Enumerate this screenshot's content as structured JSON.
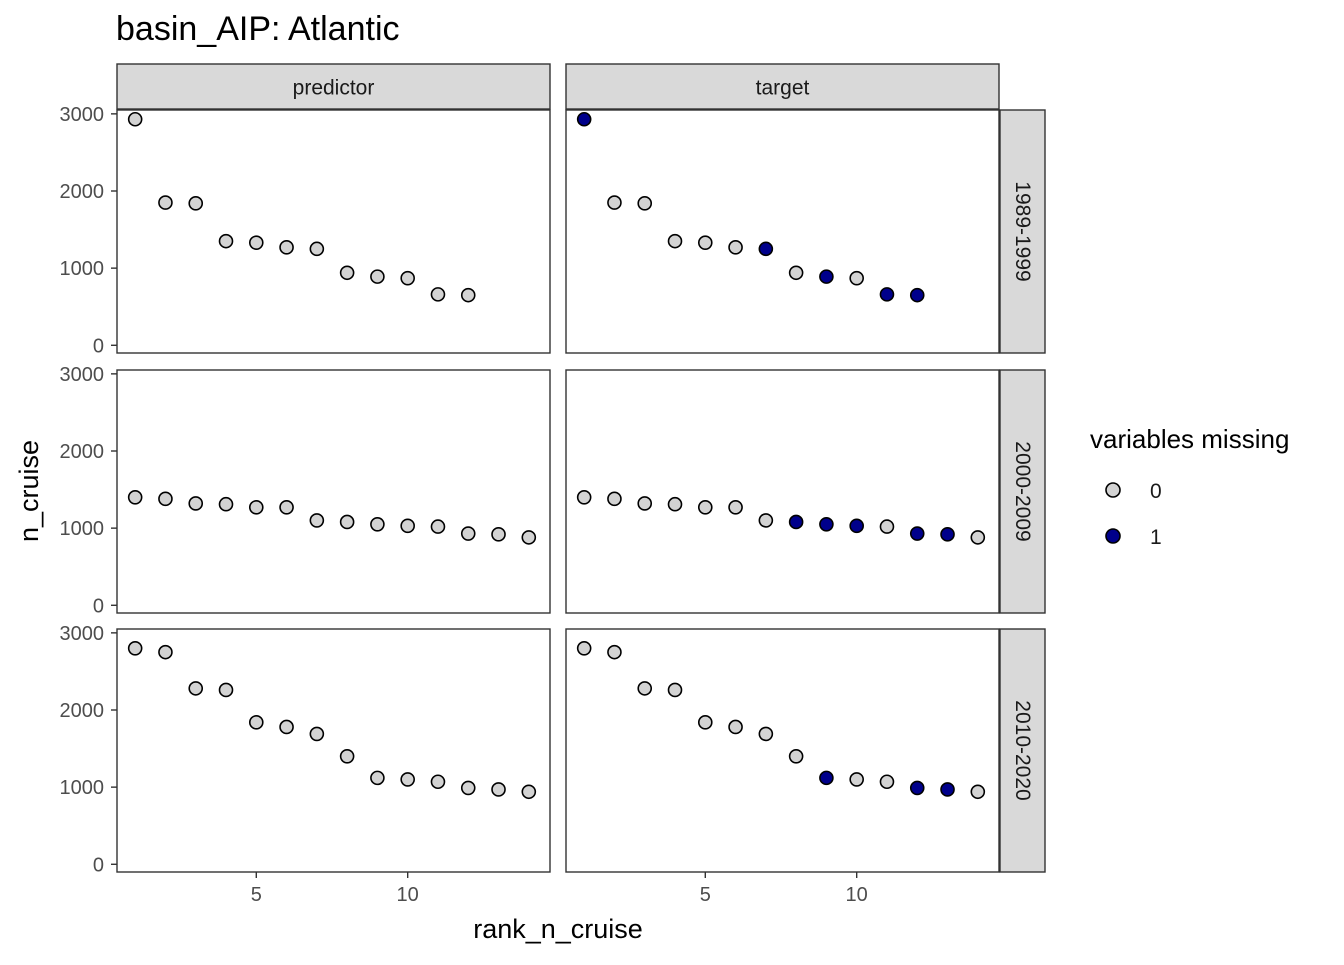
{
  "chart_data": {
    "type": "scatter",
    "title": "basin_AIP: Atlantic",
    "xlabel": "rank_n_cruise",
    "ylabel": "n_cruise",
    "ylim": [
      -100,
      3050
    ],
    "xlim": [
      0.4,
      14.7
    ],
    "x_ticks": [
      5,
      10
    ],
    "y_ticks": [
      0,
      1000,
      2000,
      3000
    ],
    "grid": false,
    "column_facets": [
      "predictor",
      "target"
    ],
    "row_facets": [
      "1989-1999",
      "2000-2009",
      "2010-2020"
    ],
    "legend": {
      "title": "variables missing",
      "position": "right",
      "entries": [
        {
          "label": "0",
          "color": "#d3d3d3"
        },
        {
          "label": "1",
          "color": "#00008b"
        }
      ]
    },
    "colors": {
      "missing_0": "#d3d3d3",
      "missing_1": "#00008b",
      "strip_bg": "#d9d9d9"
    },
    "panels": [
      {
        "column": "predictor",
        "row": "1989-1999",
        "x": [
          1,
          2,
          3,
          4,
          5,
          6,
          7,
          8,
          9,
          10,
          11,
          12
        ],
        "y": [
          2930,
          1850,
          1840,
          1350,
          1330,
          1270,
          1250,
          940,
          890,
          870,
          660,
          650
        ],
        "missing": [
          0,
          0,
          0,
          0,
          0,
          0,
          0,
          0,
          0,
          0,
          0,
          0
        ]
      },
      {
        "column": "target",
        "row": "1989-1999",
        "x": [
          1,
          2,
          3,
          4,
          5,
          6,
          7,
          8,
          9,
          10,
          11,
          12
        ],
        "y": [
          2930,
          1850,
          1840,
          1350,
          1330,
          1270,
          1250,
          940,
          890,
          870,
          660,
          650
        ],
        "missing": [
          1,
          0,
          0,
          0,
          0,
          0,
          1,
          0,
          1,
          0,
          1,
          1
        ]
      },
      {
        "column": "predictor",
        "row": "2000-2009",
        "x": [
          1,
          2,
          3,
          4,
          5,
          6,
          7,
          8,
          9,
          10,
          11,
          12,
          13,
          14
        ],
        "y": [
          1400,
          1380,
          1320,
          1310,
          1270,
          1270,
          1100,
          1080,
          1050,
          1030,
          1020,
          930,
          920,
          880
        ],
        "missing": [
          0,
          0,
          0,
          0,
          0,
          0,
          0,
          0,
          0,
          0,
          0,
          0,
          0,
          0
        ]
      },
      {
        "column": "target",
        "row": "2000-2009",
        "x": [
          1,
          2,
          3,
          4,
          5,
          6,
          7,
          8,
          9,
          10,
          11,
          12,
          13,
          14
        ],
        "y": [
          1400,
          1380,
          1320,
          1310,
          1270,
          1270,
          1100,
          1080,
          1050,
          1030,
          1020,
          930,
          920,
          880
        ],
        "missing": [
          0,
          0,
          0,
          0,
          0,
          0,
          0,
          1,
          1,
          1,
          0,
          1,
          1,
          0
        ]
      },
      {
        "column": "predictor",
        "row": "2010-2020",
        "x": [
          1,
          2,
          3,
          4,
          5,
          6,
          7,
          8,
          9,
          10,
          11,
          12,
          13,
          14
        ],
        "y": [
          2800,
          2750,
          2280,
          2260,
          1840,
          1780,
          1690,
          1400,
          1120,
          1100,
          1070,
          990,
          970,
          940
        ],
        "missing": [
          0,
          0,
          0,
          0,
          0,
          0,
          0,
          0,
          0,
          0,
          0,
          0,
          0,
          0
        ]
      },
      {
        "column": "target",
        "row": "2010-2020",
        "x": [
          1,
          2,
          3,
          4,
          5,
          6,
          7,
          8,
          9,
          10,
          11,
          12,
          13,
          14
        ],
        "y": [
          2800,
          2750,
          2280,
          2260,
          1840,
          1780,
          1690,
          1400,
          1120,
          1100,
          1070,
          990,
          970,
          940
        ],
        "missing": [
          0,
          0,
          0,
          0,
          0,
          0,
          0,
          0,
          1,
          0,
          0,
          1,
          1,
          0
        ]
      }
    ]
  }
}
